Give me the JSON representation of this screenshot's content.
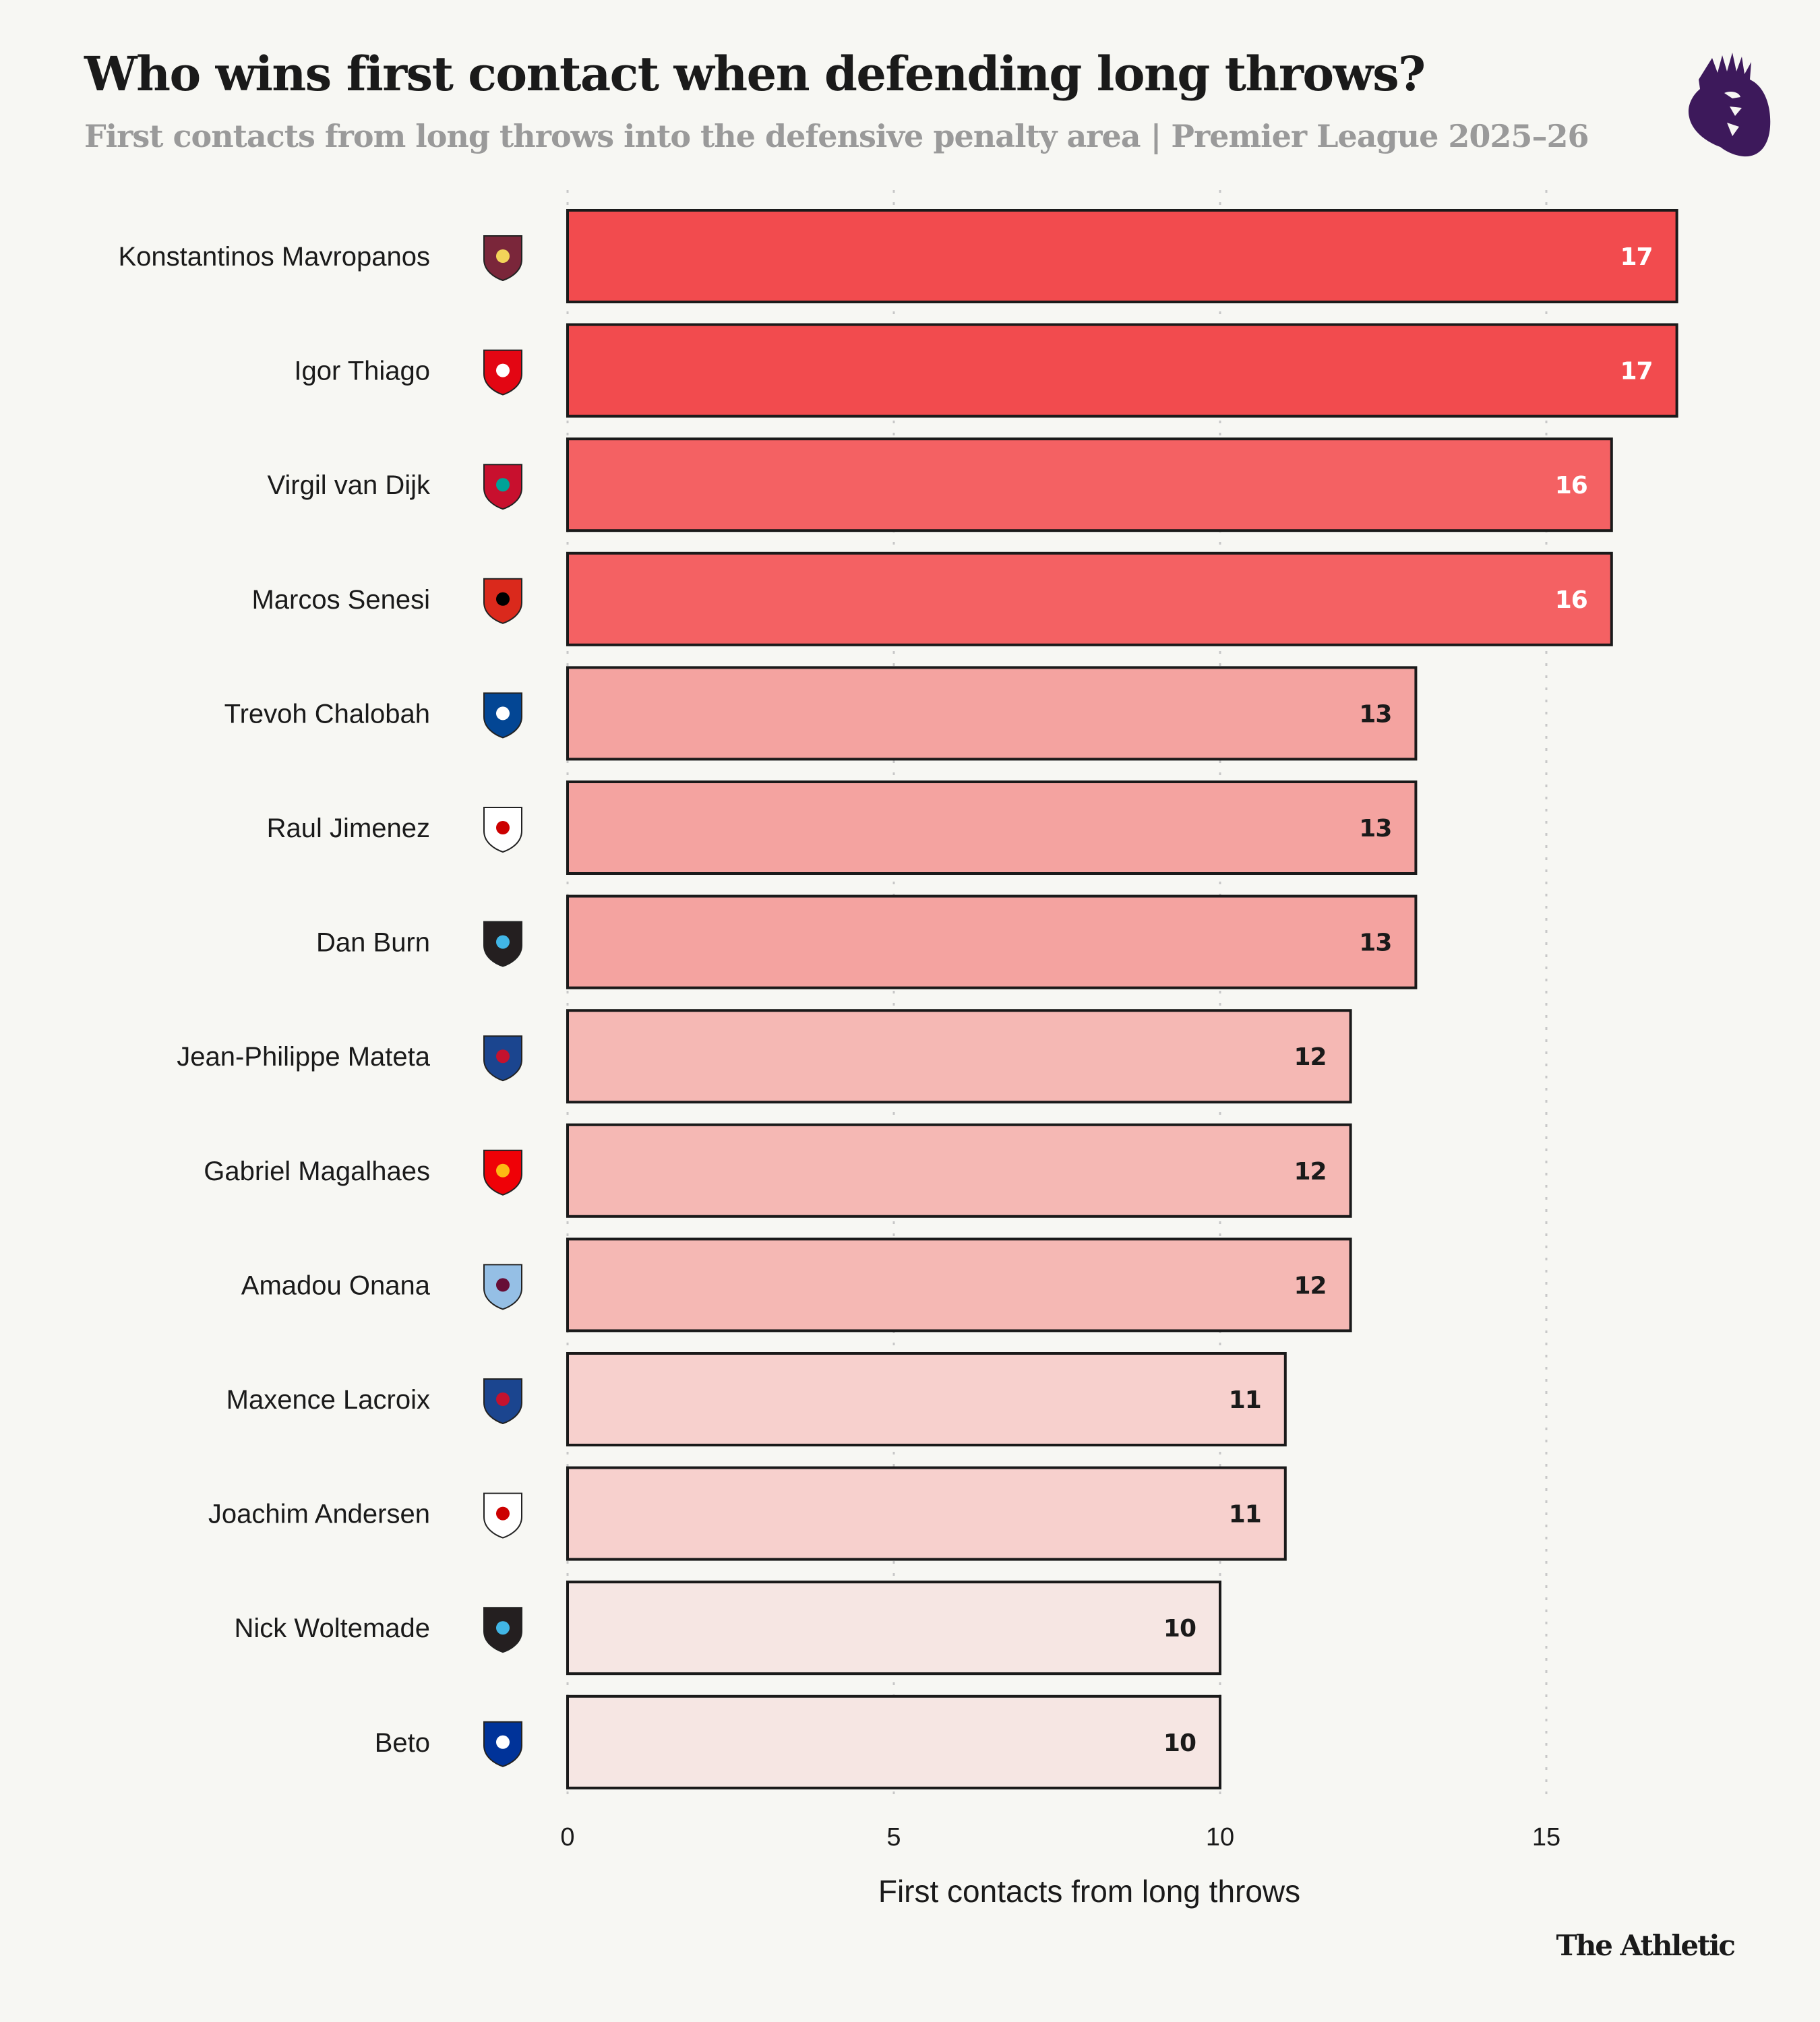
{
  "header": {
    "title": "Who wins first contact when defending long throws?",
    "subtitle": "First contacts from long throws into the defensive penalty area | Premier League 2025–26",
    "league_logo": "premier-league-lion-icon"
  },
  "footer": {
    "brand": "The Athletic"
  },
  "colors": {
    "background": "#f7f7f3",
    "bar_outline": "#1a1a1a",
    "grid": "#c8c8c8",
    "scale": {
      "17": "#f24b4e",
      "16": "#f46163",
      "13": "#f4a3a0",
      "12": "#f5b8b4",
      "11": "#f7d0cd",
      "10": "#f6e6e3"
    },
    "label_light": "#ffffff",
    "label_dark": "#1a1a1a"
  },
  "chart_data": {
    "type": "bar",
    "orientation": "horizontal",
    "title": "Who wins first contact when defending long throws?",
    "subtitle": "First contacts from long throws into the defensive penalty area | Premier League 2025–26",
    "xlabel": "First contacts from long throws",
    "ylabel": "",
    "xlim": [
      0,
      17
    ],
    "xticks": [
      0,
      5,
      10,
      15
    ],
    "grid": "vertical dotted",
    "legend": "none",
    "categories": [
      "Konstantinos Mavropanos",
      "Igor Thiago",
      "Virgil van Dijk",
      "Marcos Senesi",
      "Trevoh Chalobah",
      "Raul Jimenez",
      "Dan Burn",
      "Jean-Philippe Mateta",
      "Gabriel Magalhaes",
      "Amadou Onana",
      "Maxence Lacroix",
      "Joachim Andersen",
      "Nick Woltemade",
      "Beto"
    ],
    "clubs": [
      "West Ham United",
      "Brentford",
      "Liverpool",
      "Bournemouth",
      "Chelsea",
      "Fulham",
      "Newcastle United",
      "Crystal Palace",
      "Arsenal",
      "Aston Villa",
      "Crystal Palace",
      "Fulham",
      "Newcastle United",
      "Everton"
    ],
    "values": [
      17,
      17,
      16,
      16,
      13,
      13,
      13,
      12,
      12,
      12,
      11,
      11,
      10,
      10
    ]
  }
}
